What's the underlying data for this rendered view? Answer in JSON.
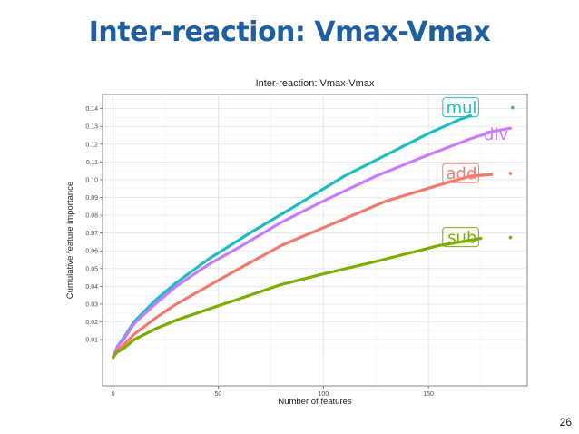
{
  "slide": {
    "title": "Inter-reaction: Vmax-Vmax",
    "page_number": "26"
  },
  "chart_data": {
    "type": "line",
    "title": "Inter-reaction: Vmax-Vmax",
    "xlabel": "Number of features",
    "ylabel": "Cumulative feature importance",
    "xlim": [
      -5,
      197
    ],
    "ylim": [
      -0.016,
      0.148
    ],
    "xticks": [
      0,
      50,
      100,
      150
    ],
    "yticks": [
      0.01,
      0.02,
      0.03,
      0.04,
      0.05,
      0.06,
      0.07,
      0.08,
      0.09,
      0.1,
      0.11,
      0.12,
      0.13,
      0.14
    ],
    "ytick_labels": [
      "0.01",
      "0.02",
      "0.03",
      "0.04",
      "0.05",
      "0.06",
      "0.07",
      "0.08",
      "0.09",
      "0.10",
      "0.11",
      "0.12",
      "0.13",
      "0.14"
    ],
    "grid": true,
    "legend": "direct labels at line ends",
    "series": [
      {
        "name": "mul",
        "color": "#1fbcbf",
        "x": [
          0,
          2,
          5,
          10,
          20,
          30,
          45,
          65,
          85,
          110,
          130,
          150,
          165,
          170
        ],
        "y": [
          0.0,
          0.006,
          0.011,
          0.02,
          0.032,
          0.042,
          0.055,
          0.07,
          0.084,
          0.102,
          0.114,
          0.126,
          0.134,
          0.136
        ]
      },
      {
        "name": "div",
        "color": "#c77cff",
        "x": [
          0,
          2,
          5,
          10,
          20,
          30,
          45,
          60,
          80,
          100,
          125,
          150,
          170,
          180,
          189
        ],
        "y": [
          0.0,
          0.006,
          0.01,
          0.019,
          0.03,
          0.04,
          0.052,
          0.062,
          0.076,
          0.088,
          0.102,
          0.114,
          0.123,
          0.127,
          0.129
        ]
      },
      {
        "name": "add",
        "color": "#f17a6f",
        "x": [
          0,
          2,
          5,
          10,
          20,
          30,
          45,
          60,
          80,
          100,
          130,
          155,
          170,
          180
        ],
        "y": [
          0.0,
          0.004,
          0.007,
          0.013,
          0.022,
          0.03,
          0.04,
          0.05,
          0.063,
          0.073,
          0.088,
          0.097,
          0.102,
          0.103
        ]
      },
      {
        "name": "sub",
        "color": "#7cae00",
        "x": [
          0,
          2,
          5,
          10,
          20,
          30,
          45,
          60,
          80,
          100,
          125,
          155,
          175
        ],
        "y": [
          0.0,
          0.003,
          0.005,
          0.01,
          0.016,
          0.021,
          0.027,
          0.033,
          0.041,
          0.047,
          0.054,
          0.063,
          0.067
        ]
      }
    ],
    "labels": [
      {
        "text": "mul",
        "x": 173,
        "y": 0.1405,
        "anchor": "end",
        "color": "#1fbcbf",
        "boxed": true,
        "dot_x": 190
      },
      {
        "text": "div",
        "x": 188,
        "y": 0.1255,
        "anchor": "end",
        "color": "#c77cff",
        "boxed": false
      },
      {
        "text": "add",
        "x": 173,
        "y": 0.1035,
        "anchor": "end",
        "color": "#f17a6f",
        "boxed": true,
        "dot_x": 189
      },
      {
        "text": "sub",
        "x": 173,
        "y": 0.0675,
        "anchor": "end",
        "color": "#7cae00",
        "boxed": true,
        "dot_x": 189
      }
    ]
  }
}
